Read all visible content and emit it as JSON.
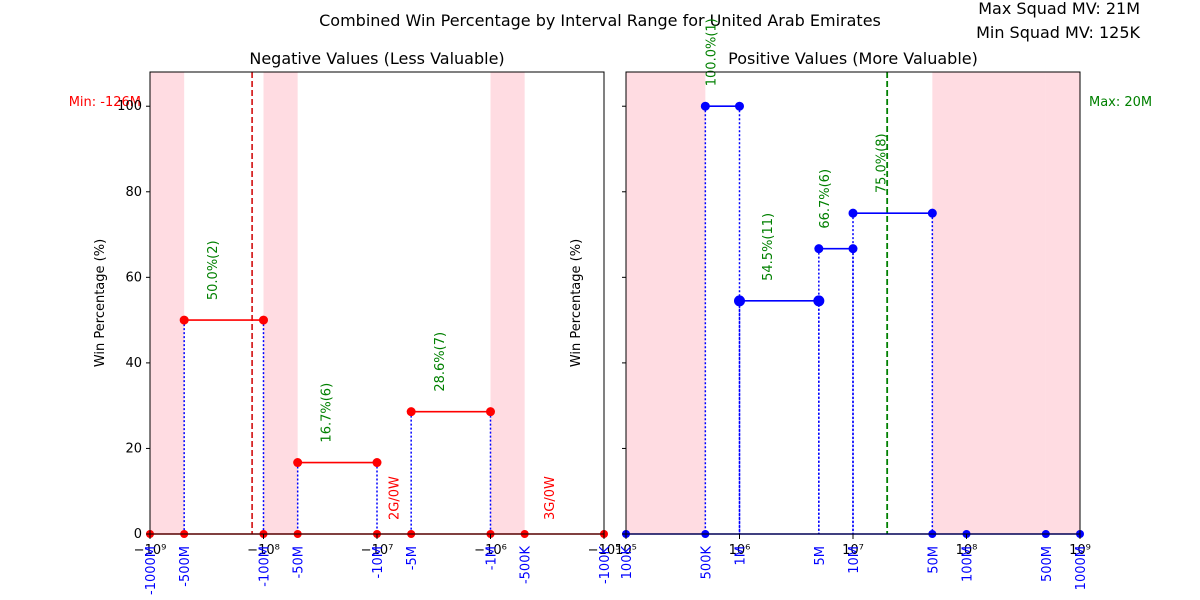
{
  "title": "Combined Win Percentage by Interval Range for United Arab Emirates",
  "squad_info": {
    "max_label": "Max Squad MV: 21M",
    "min_label": "Min Squad MV: 125K"
  },
  "colors": {
    "negative_line": "#ff0000",
    "positive_line": "#0000ff",
    "stem": "#0000ff",
    "annotation_green": "#008000",
    "annotation_red": "#ff0000",
    "shade": "#ffc0cb",
    "tick_label": "#0000ff",
    "min_line": "#d62728",
    "max_line": "#008000"
  },
  "chart_data": [
    {
      "type": "line",
      "title": "Negative Values (Less Valuable)",
      "ylabel": "Win Percentage (%)",
      "xscale": "symlog",
      "xlim": [
        -1000000000,
        -100000
      ],
      "ylim": [
        0,
        108
      ],
      "yticks": [
        0,
        20,
        40,
        60,
        80,
        100
      ],
      "major_ticks": [
        {
          "v": -1000000000,
          "label": "−10⁹"
        },
        {
          "v": -100000000,
          "label": "−10⁸"
        },
        {
          "v": -10000000,
          "label": "−10⁷"
        },
        {
          "v": -1000000,
          "label": "−10⁶"
        },
        {
          "v": -100000,
          "label": "−10⁵"
        }
      ],
      "interval_ticks": [
        {
          "v": -1000000000,
          "label": "-1000M"
        },
        {
          "v": -500000000,
          "label": "-500M"
        },
        {
          "v": -100000000,
          "label": "-100M"
        },
        {
          "v": -50000000,
          "label": "-50M"
        },
        {
          "v": -10000000,
          "label": "-10M"
        },
        {
          "v": -5000000,
          "label": "-5M"
        },
        {
          "v": -1000000,
          "label": "-1M"
        },
        {
          "v": -500000,
          "label": "-500K"
        },
        {
          "v": -100000,
          "label": "-100K"
        }
      ],
      "shaded_ranges": [
        [
          -1000000000,
          -500000000
        ],
        [
          -100000000,
          -50000000
        ],
        [
          -1000000,
          -500000
        ]
      ],
      "segments": [
        {
          "x": [
            -500000000,
            -100000000
          ],
          "y": 50.0,
          "label": "50.0%(2)"
        },
        {
          "x": [
            -50000000,
            -10000000
          ],
          "y": 16.7,
          "label": "16.7%(6)"
        },
        {
          "x": [
            -5000000,
            -1000000
          ],
          "y": 28.6,
          "label": "28.6%(7)"
        }
      ],
      "zero_points": [
        -1000000000,
        -500000000,
        -100000000,
        -50000000,
        -10000000,
        -5000000,
        -1000000,
        -500000,
        -100000
      ],
      "zero_labels": [
        {
          "x": -7000000,
          "label": "2G/0W"
        },
        {
          "x": -300000,
          "label": "3G/0W"
        }
      ],
      "ref_line": {
        "x": -126000000,
        "label": "Min: -126M"
      }
    },
    {
      "type": "line",
      "title": "Positive Values (More Valuable)",
      "ylabel": "Win Percentage (%)",
      "xscale": "log",
      "xlim": [
        100000,
        1000000000
      ],
      "ylim": [
        0,
        108
      ],
      "yticks": [
        0,
        20,
        40,
        60,
        80,
        100
      ],
      "major_ticks": [
        {
          "v": 100000,
          "label": "10⁵"
        },
        {
          "v": 1000000,
          "label": "10⁶"
        },
        {
          "v": 10000000,
          "label": "10⁷"
        },
        {
          "v": 100000000,
          "label": "10⁸"
        },
        {
          "v": 1000000000,
          "label": "10⁹"
        }
      ],
      "interval_ticks": [
        {
          "v": 100000,
          "label": "100K"
        },
        {
          "v": 500000,
          "label": "500K"
        },
        {
          "v": 1000000,
          "label": "1M"
        },
        {
          "v": 5000000,
          "label": "5M"
        },
        {
          "v": 10000000,
          "label": "10M"
        },
        {
          "v": 50000000,
          "label": "50M"
        },
        {
          "v": 100000000,
          "label": "100M"
        },
        {
          "v": 500000000,
          "label": "500M"
        },
        {
          "v": 1000000000,
          "label": "1000M"
        }
      ],
      "shaded_ranges": [
        [
          100000,
          500000
        ],
        [
          50000000,
          100000000
        ],
        [
          100000000,
          500000000
        ],
        [
          500000000,
          1000000000
        ]
      ],
      "segments": [
        {
          "x": [
            500000,
            1000000
          ],
          "y": 100.0,
          "label": "100.0%(1)"
        },
        {
          "x": [
            1000000,
            5000000
          ],
          "y": 54.5,
          "label": "54.5%(11)"
        },
        {
          "x": [
            5000000,
            10000000
          ],
          "y": 66.7,
          "label": "66.7%(6)"
        },
        {
          "x": [
            10000000,
            50000000
          ],
          "y": 75.0,
          "label": "75.0%(8)"
        }
      ],
      "zero_points": [
        100000,
        500000,
        50000000,
        100000000,
        500000000,
        1000000000
      ],
      "zero_labels": [],
      "ref_line": {
        "x": 20000000,
        "label": "Max: 20M"
      }
    }
  ]
}
